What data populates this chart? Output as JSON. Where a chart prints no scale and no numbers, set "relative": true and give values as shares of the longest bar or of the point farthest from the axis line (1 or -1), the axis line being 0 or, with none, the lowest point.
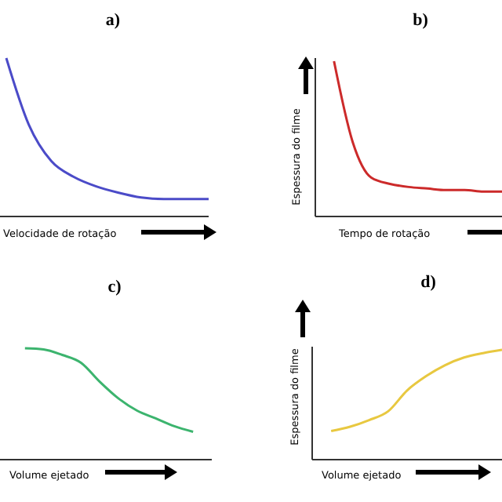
{
  "chart_data": [
    {
      "type": "line",
      "title": "a)",
      "xlabel": "Velocidade de rotação",
      "relative": true,
      "categories": [
        null,
        null,
        null,
        null,
        null,
        null,
        null,
        null,
        null,
        null
      ],
      "series": [
        {
          "color": "#4b4bc8",
          "values": [
            1,
            0.58,
            0.35,
            0.25,
            0.19,
            0.15,
            0.12,
            0.11,
            0.11,
            0.11
          ]
        }
      ]
    },
    {
      "type": "line",
      "title": "b)",
      "xlabel": "Tempo de rotação",
      "ylabel": "Espessura do filme",
      "relative": true,
      "categories": [
        null,
        null,
        null,
        null,
        null,
        null,
        null,
        null,
        null,
        null,
        null
      ],
      "series": [
        {
          "color": "#cc2a2a",
          "values": [
            null,
            1,
            0.48,
            0.25,
            0.21,
            0.19,
            0.18,
            0.17,
            0.17,
            0.16,
            0.16
          ]
        }
      ]
    },
    {
      "type": "line",
      "title": "c)",
      "xlabel": "Volume ejetado",
      "relative": true,
      "categories": [
        null,
        null,
        null,
        null,
        null,
        null,
        null,
        null,
        null,
        null,
        null,
        null
      ],
      "series": [
        {
          "color": "#3cb46e",
          "values": [
            null,
            1,
            0.99,
            0.94,
            0.87,
            0.7,
            0.55,
            0.44,
            0.37,
            0.3,
            0.25,
            null
          ]
        }
      ]
    },
    {
      "type": "line",
      "title": "d)",
      "xlabel": "Volume ejetado",
      "ylabel": "Espessura do filme",
      "relative": true,
      "categories": [
        null,
        null,
        null,
        null,
        null,
        null,
        null,
        null,
        null,
        null,
        null
      ],
      "series": [
        {
          "color": "#e8c840",
          "values": [
            null,
            0.26,
            0.3,
            0.36,
            0.44,
            0.63,
            0.76,
            0.86,
            0.93,
            0.97,
            1
          ]
        }
      ]
    }
  ]
}
